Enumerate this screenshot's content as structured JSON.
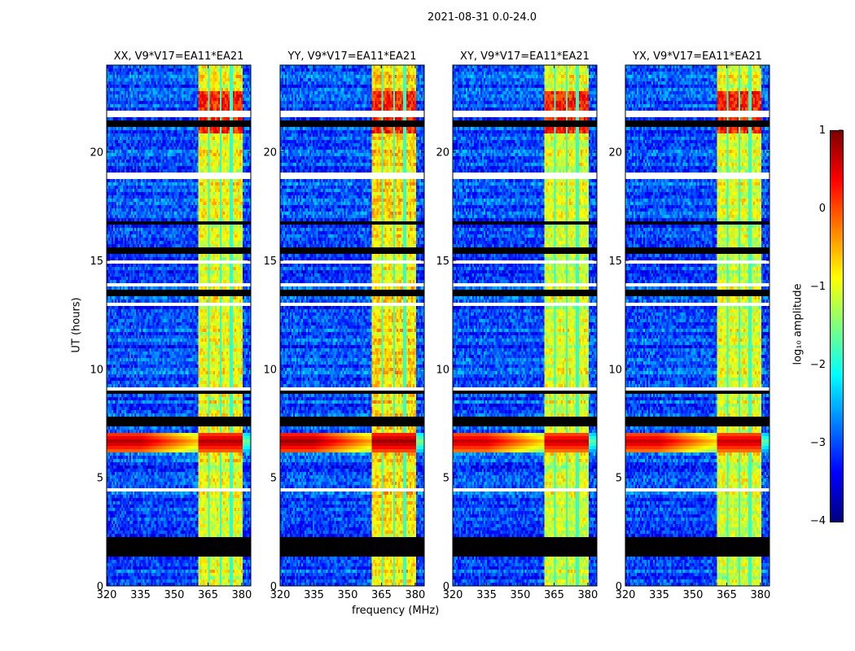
{
  "chart_data": {
    "type": "heatmap",
    "suptitle": "2021-08-31 0.0-24.0",
    "xlabel": "frequency (MHz)",
    "ylabel": "UT (hours)",
    "xlim": [
      320,
      384
    ],
    "ylim": [
      0,
      24
    ],
    "xticks": [
      "320",
      "335",
      "350",
      "365",
      "380"
    ],
    "xtick_values": [
      320,
      335,
      350,
      365,
      380
    ],
    "yticks": [
      "0",
      "5",
      "10",
      "15",
      "20"
    ],
    "ytick_values": [
      0,
      5,
      10,
      15,
      20
    ],
    "panels": [
      {
        "title": "XX, V9*V17=EA11*EA21",
        "band_level": -1.1,
        "burst_level": 0.8
      },
      {
        "title": "YY, V9*V17=EA11*EA21",
        "band_level": -0.9,
        "burst_level": 0.9
      },
      {
        "title": "XY, V9*V17=EA11*EA21",
        "band_level": -1.2,
        "burst_level": 0.7
      },
      {
        "title": "YX, V9*V17=EA11*EA21",
        "band_level": -1.2,
        "burst_level": 0.7
      }
    ],
    "background_level": -3.0,
    "rfi_band_mhz": [
      360.5,
      380
    ],
    "rfi_band_gaps_mhz": [
      365.5,
      370.5,
      375.5
    ],
    "burst_hours": [
      6.2,
      7.1
    ],
    "flagged_hours": [
      [
        1.3,
        2.3
      ],
      [
        7.4,
        7.8
      ],
      [
        8.8,
        8.95
      ],
      [
        13.3,
        13.6
      ],
      [
        15.3,
        15.6
      ],
      [
        16.6,
        16.8
      ],
      [
        21.1,
        21.5
      ],
      [
        22.9,
        23.0
      ],
      [
        23.5,
        23.6
      ]
    ],
    "blank_hours": [
      [
        2.35,
        2.45
      ],
      [
        4.4,
        4.5
      ],
      [
        9.0,
        9.1
      ],
      [
        12.9,
        13.0
      ],
      [
        13.8,
        14.0
      ],
      [
        14.8,
        15.0
      ],
      [
        18.8,
        19.1
      ],
      [
        21.6,
        21.9
      ]
    ],
    "colorbar": {
      "label": "log₁₀ amplitude",
      "range": [
        -4,
        1
      ],
      "ticks": [
        "1",
        "0",
        "−1",
        "−2",
        "−3",
        "−4"
      ],
      "tick_values": [
        1,
        0,
        -1,
        -2,
        -3,
        -4
      ],
      "colormap": "jet"
    }
  }
}
